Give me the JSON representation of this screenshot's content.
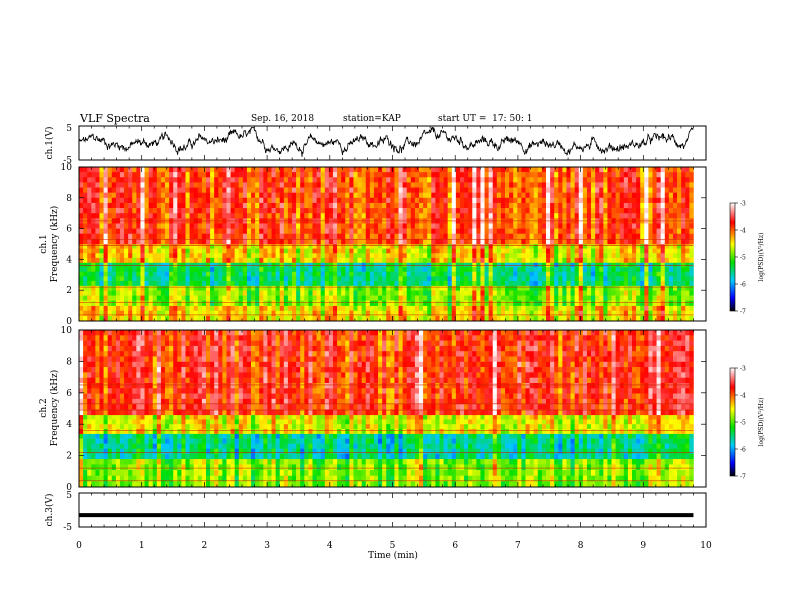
{
  "header": {
    "title": "VLF Spectra",
    "date": "Sep. 16, 2018",
    "station_label": "station=",
    "station": "KAP",
    "start_label": "start  UT  =",
    "start_time": "17: 50: 1"
  },
  "chart_data": [
    {
      "type": "line",
      "panel": "ch1-waveform",
      "ylabel": "ch.1(V)",
      "ylim": [
        -5,
        5
      ],
      "xlim": [
        0,
        10
      ],
      "y_ticks": [
        "5",
        "-5"
      ],
      "description_series": "noisy waveform fluctuating roughly between -4.5 V and 4.5 V, ending near 9.8 min",
      "data_end_min": 9.8
    },
    {
      "type": "heatmap",
      "panel": "ch1-spectrogram",
      "ylabel": "ch.1\nFrequency (kHz)",
      "ylabel_line1": "ch.1",
      "ylabel_line2": "Frequency (kHz)",
      "ylim": [
        0,
        10
      ],
      "xlim": [
        0,
        10
      ],
      "y_ticks": [
        "0",
        "2",
        "4",
        "6",
        "8",
        "10"
      ],
      "colorbar": {
        "label": "log(PSD)(V²/Hz)",
        "range": [
          -7,
          -3
        ],
        "ticks": [
          "-3",
          "-4",
          "-5",
          "-6",
          "-7"
        ]
      },
      "bands_khz": [
        {
          "from": 0.0,
          "to": 1.0,
          "level": -4.5
        },
        {
          "from": 1.0,
          "to": 2.3,
          "level": -4.9
        },
        {
          "from": 2.3,
          "to": 3.8,
          "level": -5.5
        },
        {
          "from": 3.8,
          "to": 5.0,
          "level": -4.5
        },
        {
          "from": 5.0,
          "to": 10.0,
          "level": -3.9
        }
      ]
    },
    {
      "type": "heatmap",
      "panel": "ch2-spectrogram",
      "ylabel": "ch.2\nFrequency (kHz)",
      "ylabel_line1": "ch.2",
      "ylabel_line2": "Frequency (kHz)",
      "ylim": [
        0,
        10
      ],
      "xlim": [
        0,
        10
      ],
      "y_ticks": [
        "0",
        "2",
        "4",
        "6",
        "8",
        "10"
      ],
      "colorbar": {
        "label": "log(PSD)(V²/Hz)",
        "range": [
          -7,
          -3
        ],
        "ticks": [
          "-3",
          "-4",
          "-5",
          "-6",
          "-7"
        ]
      },
      "bands_khz": [
        {
          "from": 0.0,
          "to": 1.8,
          "level": -4.9
        },
        {
          "from": 1.8,
          "to": 3.4,
          "level": -5.6
        },
        {
          "from": 3.4,
          "to": 4.6,
          "level": -4.6
        },
        {
          "from": 4.6,
          "to": 10.0,
          "level": -3.8
        }
      ]
    },
    {
      "type": "line",
      "panel": "ch3-waveform",
      "ylabel": "ch.3(V)",
      "ylim": [
        -5,
        5
      ],
      "xlim": [
        0,
        10
      ],
      "y_ticks": [
        "5",
        "-5"
      ],
      "constant_value_v": -1.5,
      "data_end_min": 9.8
    }
  ],
  "xaxis": {
    "label": "Time (min)",
    "ticks": [
      "0",
      "1",
      "2",
      "3",
      "4",
      "5",
      "6",
      "7",
      "8",
      "9",
      "10"
    ],
    "range": [
      0,
      10
    ]
  }
}
